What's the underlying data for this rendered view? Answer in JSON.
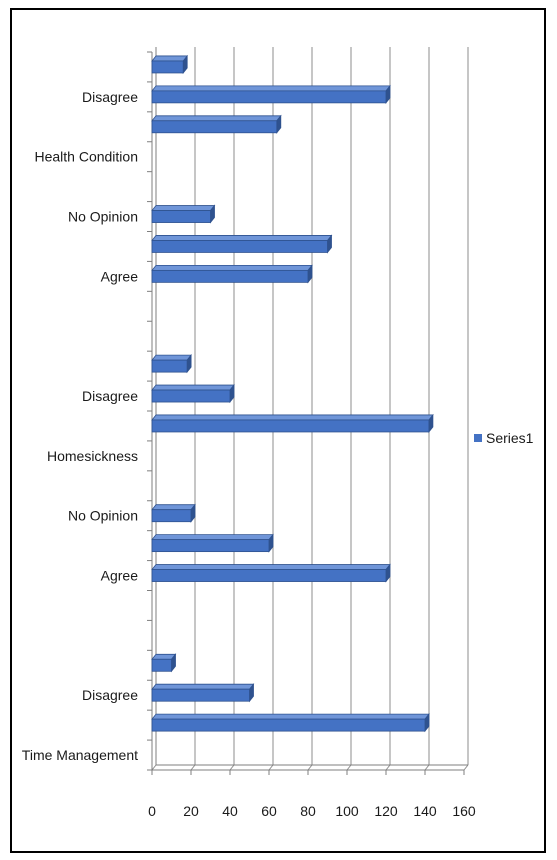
{
  "chart_data": {
    "type": "bar",
    "orientation": "horizontal",
    "bar_style": "3d",
    "bar_color": "#4472C4",
    "grid": true,
    "legend_position": "right",
    "xlim": [
      0,
      160
    ],
    "x_ticks": [
      0,
      20,
      40,
      60,
      80,
      100,
      120,
      140,
      160
    ],
    "category_labels": [
      "Time Management",
      "",
      "Disagree",
      "",
      "",
      "",
      "Agree",
      "",
      "No Opinion",
      "",
      "Homesickness",
      "",
      "Disagree",
      "",
      "",
      "",
      "Agree",
      "",
      "No Opinion",
      "",
      "Health Condition",
      "",
      "Disagree",
      ""
    ],
    "series": [
      {
        "name": "Series1",
        "values": [
          null,
          140,
          50,
          10,
          null,
          null,
          120,
          60,
          20,
          null,
          null,
          142,
          40,
          18,
          null,
          null,
          80,
          90,
          30,
          null,
          null,
          64,
          120,
          16
        ]
      }
    ]
  }
}
